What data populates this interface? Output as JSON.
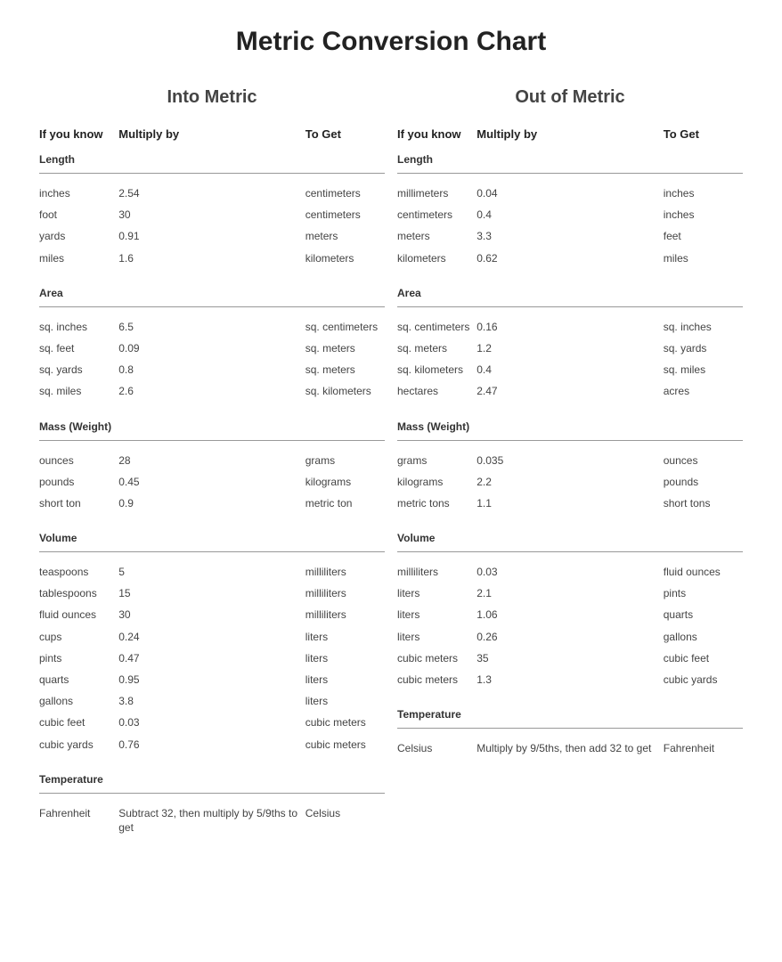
{
  "title": "Metric Conversion Chart",
  "columns": {
    "into": {
      "title": "Into Metric",
      "headers": {
        "c1": "If you know",
        "c2": "Multiply by",
        "c3": "To Get"
      },
      "sections": [
        {
          "name": "Length",
          "rows": [
            {
              "know": "inches",
              "mult": "2.54",
              "get": "centimeters"
            },
            {
              "know": "foot",
              "mult": "30",
              "get": "centimeters"
            },
            {
              "know": "yards",
              "mult": "0.91",
              "get": "meters"
            },
            {
              "know": "miles",
              "mult": "1.6",
              "get": "kilometers"
            }
          ]
        },
        {
          "name": "Area",
          "rows": [
            {
              "know": "sq. inches",
              "mult": "6.5",
              "get": "sq. centimeters"
            },
            {
              "know": "sq. feet",
              "mult": "0.09",
              "get": "sq. meters"
            },
            {
              "know": "sq. yards",
              "mult": "0.8",
              "get": "sq. meters"
            },
            {
              "know": "sq. miles",
              "mult": "2.6",
              "get": "sq. kilometers"
            }
          ]
        },
        {
          "name": "Mass (Weight)",
          "rows": [
            {
              "know": "ounces",
              "mult": "28",
              "get": "grams"
            },
            {
              "know": "pounds",
              "mult": "0.45",
              "get": "kilograms"
            },
            {
              "know": "short ton",
              "mult": "0.9",
              "get": "metric ton"
            }
          ]
        },
        {
          "name": "Volume",
          "rows": [
            {
              "know": "teaspoons",
              "mult": "5",
              "get": "milliliters"
            },
            {
              "know": "tablespoons",
              "mult": "15",
              "get": "milliliters"
            },
            {
              "know": "fluid ounces",
              "mult": "30",
              "get": "milliliters"
            },
            {
              "know": "cups",
              "mult": "0.24",
              "get": "liters"
            },
            {
              "know": "pints",
              "mult": "0.47",
              "get": "liters"
            },
            {
              "know": "quarts",
              "mult": "0.95",
              "get": "liters"
            },
            {
              "know": "gallons",
              "mult": "3.8",
              "get": "liters"
            },
            {
              "know": "cubic feet",
              "mult": "0.03",
              "get": "cubic meters"
            },
            {
              "know": "cubic yards",
              "mult": "0.76",
              "get": "cubic meters"
            }
          ]
        },
        {
          "name": "Temperature",
          "rows": [
            {
              "know": "Fahrenheit",
              "mult": "Subtract 32, then multiply by 5/9ths to get",
              "get": "Celsius"
            }
          ]
        }
      ]
    },
    "out": {
      "title": "Out of Metric",
      "headers": {
        "c1": "If you know",
        "c2": "Multiply by",
        "c3": "To Get"
      },
      "sections": [
        {
          "name": "Length",
          "rows": [
            {
              "know": "millimeters",
              "mult": "0.04",
              "get": "inches"
            },
            {
              "know": "centimeters",
              "mult": "0.4",
              "get": "inches"
            },
            {
              "know": "meters",
              "mult": "3.3",
              "get": "feet"
            },
            {
              "know": "kilometers",
              "mult": "0.62",
              "get": "miles"
            }
          ]
        },
        {
          "name": "Area",
          "rows": [
            {
              "know": "sq. centimeters",
              "mult": "0.16",
              "get": "sq. inches"
            },
            {
              "know": "sq. meters",
              "mult": "1.2",
              "get": "sq. yards"
            },
            {
              "know": "sq. kilometers",
              "mult": "0.4",
              "get": "sq. miles"
            },
            {
              "know": "hectares",
              "mult": "2.47",
              "get": "acres"
            }
          ]
        },
        {
          "name": "Mass (Weight)",
          "rows": [
            {
              "know": "grams",
              "mult": "0.035",
              "get": "ounces"
            },
            {
              "know": "kilograms",
              "mult": "2.2",
              "get": "pounds"
            },
            {
              "know": "metric tons",
              "mult": "1.1",
              "get": "short tons"
            }
          ]
        },
        {
          "name": "Volume",
          "rows": [
            {
              "know": "milliliters",
              "mult": "0.03",
              "get": "fluid ounces"
            },
            {
              "know": "liters",
              "mult": "2.1",
              "get": "pints"
            },
            {
              "know": "liters",
              "mult": "1.06",
              "get": "quarts"
            },
            {
              "know": "liters",
              "mult": "0.26",
              "get": "gallons"
            },
            {
              "know": "cubic meters",
              "mult": "35",
              "get": "cubic feet"
            },
            {
              "know": "cubic meters",
              "mult": "1.3",
              "get": "cubic yards"
            }
          ]
        },
        {
          "name": "Temperature",
          "rows": [
            {
              "know": "Celsius",
              "mult": "Multiply by 9/5ths, then add 32 to get",
              "get": "Fahrenheit"
            }
          ]
        }
      ]
    }
  },
  "style": {
    "background_color": "#ffffff",
    "text_color": "#333333",
    "title_color": "#222222",
    "rule_color": "#999999",
    "title_fontsize": 30,
    "subtitle_fontsize": 20,
    "header_fontsize": 13,
    "body_fontsize": 12,
    "column_widths_pct": [
      23,
      54,
      23
    ]
  }
}
